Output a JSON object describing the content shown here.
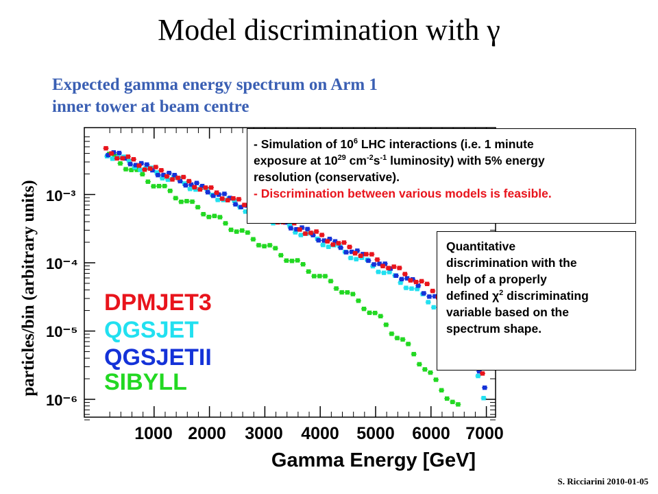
{
  "slide": {
    "title": "Model discrimination with γ",
    "subtitle_line1": "Expected gamma energy spectrum on Arm 1",
    "subtitle_line2": "inner tower at beam centre",
    "credit": "S. Ricciarini 2010-01-05"
  },
  "note1": {
    "line1_a": "- Simulation of 10",
    "line1_sup": "6",
    "line1_b": " LHC interactions (i.e. 1 minute",
    "line2_a": "exposure at 10",
    "line2_sup1": "29",
    "line2_b": " cm",
    "line2_sup2": "-2",
    "line2_c": "s",
    "line2_sup3": "-1",
    "line2_d": " luminosity) with 5% energy",
    "line3": "resolution (conservative).",
    "line4": "- Discrimination between various models is feasible."
  },
  "note2": {
    "line1": "Quantitative",
    "line2": "discrimination with the",
    "line3": "help of a properly",
    "line4_a": "defined χ",
    "line4_sup": "2",
    "line4_b": " discriminating",
    "line5": "variable based on the",
    "line6": "spectrum shape."
  },
  "chart_data": {
    "type": "scatter",
    "xlabel": "Gamma Energy [GeV]",
    "ylabel": "particles/bin (arbitrary units)",
    "x_ticks": [
      "1000",
      "2000",
      "3000",
      "4000",
      "5000",
      "6000",
      "7000"
    ],
    "y_ticks": [
      "10⁻³",
      "10⁻⁴",
      "10⁻⁵",
      "10⁻⁶"
    ],
    "y_scale": "log",
    "xlim": [
      0,
      7100
    ],
    "ylim": [
      5e-07,
      0.007
    ],
    "legend_position": "bottom-left",
    "colors": {
      "DPMJET3": "#e8141c",
      "QGSJET": "#22e0f0",
      "QGSJETII": "#1432d8",
      "SIBYLL": "#22d822",
      "axis": "#000000"
    },
    "series": [
      {
        "name": "DPMJET3",
        "points": [
          [
            200,
            0.0043
          ],
          [
            800,
            0.0027
          ],
          [
            1400,
            0.0018
          ],
          [
            2000,
            0.00118
          ],
          [
            2600,
            0.00074
          ],
          [
            3200,
            0.00046
          ],
          [
            3800,
            0.00029
          ],
          [
            4400,
            0.000185
          ],
          [
            5000,
            0.000115
          ],
          [
            5600,
            6.6e-05
          ],
          [
            6100,
            3.8e-05
          ],
          [
            6500,
            2.23e-05
          ],
          [
            6800,
            1.1e-05
          ],
          [
            7000,
            1.5e-06
          ]
        ]
      },
      {
        "name": "QGSJET",
        "points": [
          [
            200,
            0.0039
          ],
          [
            800,
            0.00245
          ],
          [
            1400,
            0.00162
          ],
          [
            2000,
            0.00106
          ],
          [
            2600,
            0.00066
          ],
          [
            3200,
            0.00041
          ],
          [
            3800,
            0.00025
          ],
          [
            4400,
            0.000152
          ],
          [
            5000,
            8.8e-05
          ],
          [
            5600,
            4.6e-05
          ],
          [
            6100,
            2.35e-05
          ],
          [
            6500,
            8.9e-06
          ],
          [
            6800,
            3.1e-06
          ],
          [
            7000,
            9e-07
          ]
        ]
      },
      {
        "name": "QGSJETII",
        "points": [
          [
            200,
            0.0041
          ],
          [
            800,
            0.00258
          ],
          [
            1400,
            0.00171
          ],
          [
            2000,
            0.00112
          ],
          [
            2600,
            0.0007
          ],
          [
            3200,
            0.00044
          ],
          [
            3800,
            0.000272
          ],
          [
            4400,
            0.000168
          ],
          [
            5000,
            0.000102
          ],
          [
            5600,
            5.5e-05
          ],
          [
            6100,
            2.9e-05
          ],
          [
            6500,
            1.3e-05
          ],
          [
            6800,
            4.2e-06
          ],
          [
            7000,
            1.2e-06
          ]
        ]
      },
      {
        "name": "SIBYLL",
        "points": [
          [
            200,
            0.0036
          ],
          [
            800,
            0.00175
          ],
          [
            1400,
            0.00092
          ],
          [
            2000,
            0.00049
          ],
          [
            2600,
            0.000265
          ],
          [
            3200,
            0.000143
          ],
          [
            3800,
            7.6e-05
          ],
          [
            4400,
            3.9e-05
          ],
          [
            5000,
            1.65e-05
          ],
          [
            5600,
            5.4e-06
          ],
          [
            6100,
            1.6e-06
          ],
          [
            6500,
            7e-07
          ]
        ]
      }
    ]
  }
}
